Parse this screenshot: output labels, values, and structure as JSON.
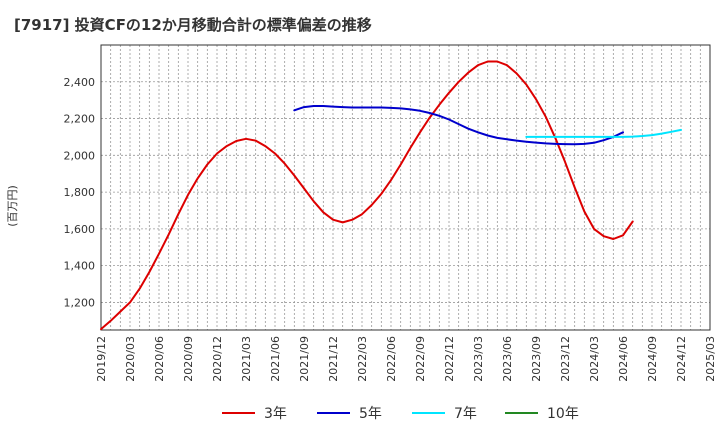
{
  "title": "[7917]  投資CFの12か月移動合計の標準偏差の推移",
  "chart_data": {
    "type": "line",
    "title": "[7917]  投資CFの12か月移動合計の標準偏差の推移",
    "ylabel": "(百万円)",
    "xlabel": "",
    "ylim": [
      1050,
      2600
    ],
    "yticks": [
      1200,
      1400,
      1600,
      1800,
      2000,
      2200,
      2400
    ],
    "ytick_labels": [
      "1,200",
      "1,400",
      "1,600",
      "1,800",
      "2,000",
      "2,200",
      "2,400"
    ],
    "xticks": [
      "2019/12",
      "2020/03",
      "2020/06",
      "2020/09",
      "2020/12",
      "2021/03",
      "2021/06",
      "2021/09",
      "2021/12",
      "2022/03",
      "2022/06",
      "2022/09",
      "2022/12",
      "2023/03",
      "2023/06",
      "2023/09",
      "2023/12",
      "2024/03",
      "2024/06",
      "2024/09",
      "2024/12",
      "2025/03"
    ],
    "grid": true,
    "legend_position": "bottom",
    "series": [
      {
        "name": "3年",
        "color": "#dd0000",
        "start_month_index": 0,
        "values": [
          1055,
          1100,
          1150,
          1200,
          1275,
          1365,
          1465,
          1570,
          1680,
          1785,
          1875,
          1950,
          2010,
          2050,
          2078,
          2090,
          2080,
          2050,
          2010,
          1955,
          1890,
          1820,
          1750,
          1690,
          1650,
          1635,
          1650,
          1680,
          1730,
          1790,
          1865,
          1950,
          2040,
          2125,
          2205,
          2275,
          2340,
          2400,
          2450,
          2490,
          2510,
          2510,
          2490,
          2445,
          2385,
          2305,
          2210,
          2095,
          1965,
          1825,
          1695,
          1600,
          1560,
          1545,
          1565,
          1640
        ]
      },
      {
        "name": "5年",
        "color": "#0000cc",
        "start_month_index": 20,
        "values": [
          2245,
          2262,
          2268,
          2268,
          2265,
          2262,
          2260,
          2260,
          2260,
          2260,
          2258,
          2255,
          2250,
          2242,
          2230,
          2215,
          2195,
          2170,
          2145,
          2125,
          2108,
          2095,
          2087,
          2080,
          2074,
          2069,
          2065,
          2062,
          2061,
          2060,
          2062,
          2068,
          2082,
          2100,
          2125
        ]
      },
      {
        "name": "7年",
        "color": "#00e5ff",
        "start_month_index": 44,
        "values": [
          2100,
          2100,
          2100,
          2100,
          2100,
          2100,
          2100,
          2100,
          2100,
          2100,
          2100,
          2102,
          2105,
          2110,
          2118,
          2128,
          2138
        ]
      },
      {
        "name": "10年",
        "color": "#228822",
        "start_month_index": 0,
        "values": []
      }
    ]
  }
}
